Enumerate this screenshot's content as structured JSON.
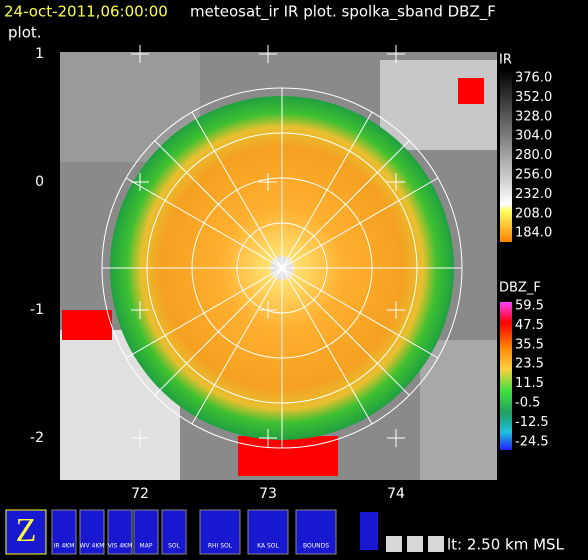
{
  "header": {
    "timestamp": "24-oct-2011,06:00:00",
    "title": "meteosat_ir IR  plot.  spolka_sband DBZ_F",
    "title_cont": "plot."
  },
  "map": {
    "y_labels": [
      "1",
      "0",
      "-1",
      "-2"
    ],
    "x_labels": [
      "72",
      "73",
      "74"
    ]
  },
  "colorbars": [
    {
      "name": "IR",
      "labels": [
        "376.0",
        "352.0",
        "328.0",
        "304.0",
        "280.0",
        "256.0",
        "232.0",
        "208.0",
        "184.0"
      ]
    },
    {
      "name": "DBZ_F",
      "labels": [
        "59.5",
        "47.5",
        "35.5",
        "23.5",
        "11.5",
        "-0.5",
        "-12.5",
        "-24.5"
      ]
    }
  ],
  "toolbar": {
    "buttons": [
      "IR 4KM",
      "WV 4KM",
      "VIS 4KM",
      "MAP",
      "SOL",
      "RHI SOL",
      "KA SOL",
      "BOUNDS"
    ],
    "altitude": "lt: 2.50 km MSL"
  }
}
